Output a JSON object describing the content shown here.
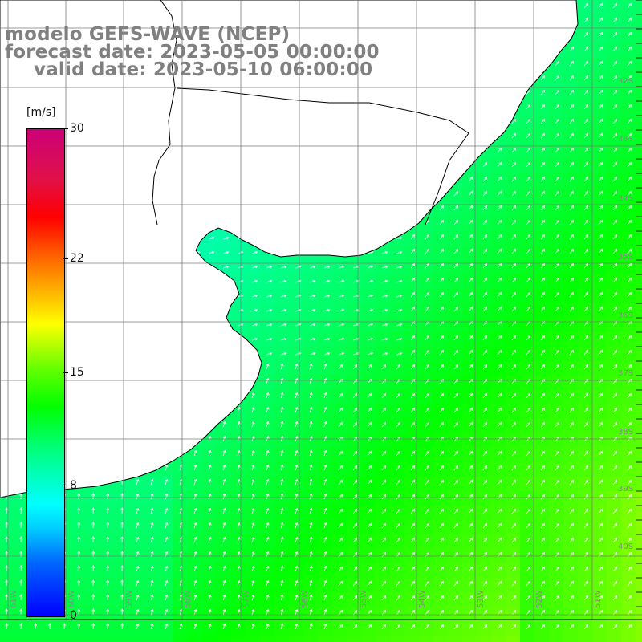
{
  "header": {
    "line1": "modelo GEFS-WAVE (NCEP)",
    "line2": "forecast date: 2023-05-05 00:00:00",
    "line3": "valid date: 2023-05-10 06:00:00"
  },
  "colorbar": {
    "unit": "[m/s]",
    "ticks": [
      "30",
      "22",
      "15",
      "8",
      "0"
    ],
    "tick_values": [
      30,
      22,
      15,
      8,
      0
    ],
    "min": 0,
    "max": 30
  },
  "map": {
    "field": "wind speed",
    "lat_labels": [
      "32S",
      "33S",
      "34S",
      "35S",
      "36S",
      "37S",
      "38S",
      "39S",
      "40S"
    ],
    "lon_labels": [
      "61W",
      "60W",
      "59W",
      "58W",
      "57W",
      "56W",
      "55W",
      "54W",
      "53W",
      "52W",
      "51W"
    ],
    "colors": {
      "land": "#ffffff",
      "coast": "#000000",
      "grid": "#888888",
      "arrow": "#ffffff"
    }
  }
}
